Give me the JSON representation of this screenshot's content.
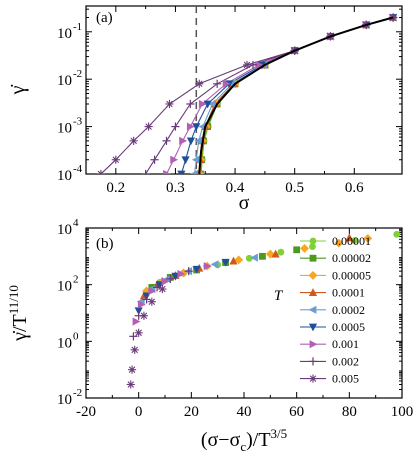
{
  "chart_data": [
    {
      "type": "line",
      "panel_label": "(a)",
      "xlabel": "σ",
      "ylabel": "γ̇",
      "xscale": "linear",
      "yscale": "log",
      "xlim": [
        0.15,
        0.68
      ],
      "ylim": [
        0.0001,
        0.35
      ],
      "xticks": [
        0.2,
        0.3,
        0.4,
        0.5,
        0.6
      ],
      "xtick_labels": [
        "0.2",
        "0.3",
        "0.4",
        "0.5",
        "0.6"
      ],
      "yticks": [
        0.0001,
        0.001,
        0.01,
        0.1
      ],
      "ytick_labels": [
        "10",
        "10",
        "10",
        "10"
      ],
      "ytick_exponents": [
        "-4",
        "-3",
        "-2",
        "-1"
      ],
      "vertical_dashed_line_x": 0.335,
      "critical_curve": {
        "color": "#000000",
        "x": [
          0.34,
          0.343,
          0.35,
          0.37,
          0.4,
          0.45,
          0.5,
          0.56,
          0.62,
          0.665
        ],
        "y": [
          0.0001,
          0.0003,
          0.001,
          0.003,
          0.008,
          0.02,
          0.04,
          0.08,
          0.14,
          0.2
        ]
      },
      "series": [
        {
          "T": "0.00001",
          "color": "#7fd13b",
          "marker": "circle",
          "x": [
            0.343,
            0.345,
            0.348,
            0.355,
            0.37,
            0.4,
            0.45,
            0.5,
            0.56,
            0.62,
            0.665
          ],
          "y": [
            0.0001,
            0.0002,
            0.0005,
            0.001,
            0.003,
            0.008,
            0.02,
            0.04,
            0.08,
            0.14,
            0.2
          ]
        },
        {
          "T": "0.00002",
          "color": "#4d9a1f",
          "marker": "square",
          "x": [
            0.342,
            0.344,
            0.347,
            0.354,
            0.37,
            0.4,
            0.45,
            0.5,
            0.56,
            0.62,
            0.665
          ],
          "y": [
            0.0001,
            0.0002,
            0.0005,
            0.001,
            0.003,
            0.008,
            0.02,
            0.04,
            0.08,
            0.14,
            0.2
          ]
        },
        {
          "T": "0.00005",
          "color": "#f5a623",
          "marker": "diamond",
          "x": [
            0.341,
            0.343,
            0.346,
            0.352,
            0.368,
            0.4,
            0.45,
            0.5,
            0.56,
            0.62,
            0.665
          ],
          "y": [
            0.0001,
            0.0002,
            0.0005,
            0.001,
            0.003,
            0.008,
            0.02,
            0.04,
            0.08,
            0.14,
            0.2
          ]
        },
        {
          "T": "0.0001",
          "color": "#d3561a",
          "marker": "triangle-up",
          "x": [
            0.339,
            0.341,
            0.344,
            0.35,
            0.366,
            0.398,
            0.45,
            0.5,
            0.56,
            0.62,
            0.665
          ],
          "y": [
            0.0001,
            0.0002,
            0.0005,
            0.001,
            0.003,
            0.008,
            0.02,
            0.04,
            0.08,
            0.14,
            0.2
          ]
        },
        {
          "T": "0.0002",
          "color": "#6b9fd4",
          "marker": "triangle-left",
          "x": [
            0.332,
            0.335,
            0.339,
            0.346,
            0.362,
            0.395,
            0.448,
            0.5,
            0.56,
            0.62,
            0.665
          ],
          "y": [
            0.0001,
            0.0002,
            0.0005,
            0.001,
            0.003,
            0.008,
            0.02,
            0.04,
            0.08,
            0.14,
            0.2
          ]
        },
        {
          "T": "0.0005",
          "color": "#1f4f9a",
          "marker": "triangle-down",
          "x": [
            0.31,
            0.317,
            0.326,
            0.335,
            0.354,
            0.39,
            0.445,
            0.5,
            0.56,
            0.62,
            0.665
          ],
          "y": [
            0.0001,
            0.0002,
            0.0005,
            0.001,
            0.003,
            0.008,
            0.02,
            0.04,
            0.08,
            0.14,
            0.2
          ]
        },
        {
          "T": "0.001",
          "color": "#b45fb4",
          "marker": "triangle-right",
          "x": [
            0.285,
            0.297,
            0.312,
            0.325,
            0.345,
            0.385,
            0.44,
            0.5,
            0.56,
            0.62,
            0.665
          ],
          "y": [
            0.0001,
            0.0002,
            0.0005,
            0.001,
            0.003,
            0.008,
            0.02,
            0.04,
            0.08,
            0.14,
            0.2
          ]
        },
        {
          "T": "0.002",
          "color": "#6a3a7a",
          "marker": "plus",
          "x": [
            0.25,
            0.265,
            0.285,
            0.3,
            0.325,
            0.37,
            0.43,
            0.5,
            0.56,
            0.62,
            0.665
          ],
          "y": [
            0.0001,
            0.0002,
            0.0005,
            0.001,
            0.003,
            0.008,
            0.02,
            0.04,
            0.08,
            0.14,
            0.2
          ]
        },
        {
          "T": "0.005",
          "color": "#6a3a7a",
          "marker": "asterisk",
          "x": [
            0.175,
            0.2,
            0.23,
            0.255,
            0.29,
            0.34,
            0.42,
            0.5,
            0.56,
            0.62,
            0.665
          ],
          "y": [
            0.0001,
            0.0002,
            0.0005,
            0.001,
            0.003,
            0.008,
            0.02,
            0.04,
            0.08,
            0.14,
            0.2
          ]
        }
      ]
    },
    {
      "type": "scatter",
      "panel_label": "(b)",
      "xlabel": "(σ−σ",
      "xlabel_sub": "c",
      "xlabel_tail": ")/T",
      "xlabel_sup": "3/5",
      "ylabel": "γ̇/T",
      "ylabel_sup": "11/10",
      "xscale": "linear",
      "yscale": "log",
      "xlim": [
        -20,
        100
      ],
      "ylim": [
        0.01,
        10000
      ],
      "xticks": [
        -20,
        0,
        20,
        40,
        60,
        80,
        100
      ],
      "xtick_labels": [
        "-20",
        "0",
        "20",
        "40",
        "60",
        "80",
        "100"
      ],
      "yticks": [
        0.01,
        1,
        100,
        10000
      ],
      "ytick_labels": [
        "10",
        "10",
        "10",
        "10"
      ],
      "ytick_exponents": [
        "-2",
        "0",
        "2",
        "4"
      ],
      "legend_title": "T",
      "legend_position": "right",
      "series": [
        {
          "T": "0.00001",
          "color": "#7fd13b",
          "marker": "circle",
          "x": [
            8,
            17,
            30,
            42,
            54,
            66,
            82,
            98
          ],
          "y": [
            120,
            250,
            500,
            850,
            1400,
            2200,
            3600,
            6000
          ]
        },
        {
          "T": "0.00002",
          "color": "#4d9a1f",
          "marker": "square",
          "x": [
            5,
            12,
            22,
            33,
            47,
            60
          ],
          "y": [
            80,
            180,
            330,
            600,
            1000,
            1700
          ]
        },
        {
          "T": "0.00005",
          "color": "#f5a623",
          "marker": "diamond",
          "x": [
            3,
            9,
            17,
            26,
            38,
            50,
            63,
            76,
            87
          ],
          "y": [
            60,
            130,
            260,
            450,
            750,
            1200,
            1900,
            2900,
            4300
          ]
        },
        {
          "T": "0.0001",
          "color": "#d3561a",
          "marker": "triangle-up",
          "x": [
            2,
            7,
            14,
            23,
            36,
            52,
            80
          ],
          "y": [
            40,
            100,
            210,
            380,
            680,
            1200,
            4500
          ]
        },
        {
          "T": "0.0002",
          "color": "#6b9fd4",
          "marker": "triangle-left",
          "x": [
            1,
            5,
            11,
            19,
            29,
            44
          ],
          "y": [
            25,
            70,
            160,
            300,
            520,
            900
          ]
        },
        {
          "T": "0.0005",
          "color": "#1f4f9a",
          "marker": "triangle-down",
          "x": [
            0,
            3,
            8,
            14,
            22,
            33
          ],
          "y": [
            12,
            40,
            100,
            200,
            350,
            620
          ]
        },
        {
          "T": "0.001",
          "color": "#b45fb4",
          "marker": "triangle-right",
          "x": [
            -1,
            1,
            5,
            10,
            16,
            26
          ],
          "y": [
            5,
            20,
            60,
            130,
            240,
            450
          ]
        },
        {
          "T": "0.002",
          "color": "#6a3a7a",
          "marker": "plus",
          "x": [
            -2,
            0,
            3,
            7,
            12,
            19
          ],
          "y": [
            1.5,
            8,
            30,
            80,
            160,
            300
          ]
        },
        {
          "T": "0.005",
          "color": "#6a3a7a",
          "marker": "asterisk",
          "x": [
            -3,
            -2.5,
            -1.5,
            0,
            2,
            5,
            9
          ],
          "y": [
            0.03,
            0.1,
            0.5,
            2,
            8,
            25,
            70
          ]
        }
      ]
    }
  ]
}
